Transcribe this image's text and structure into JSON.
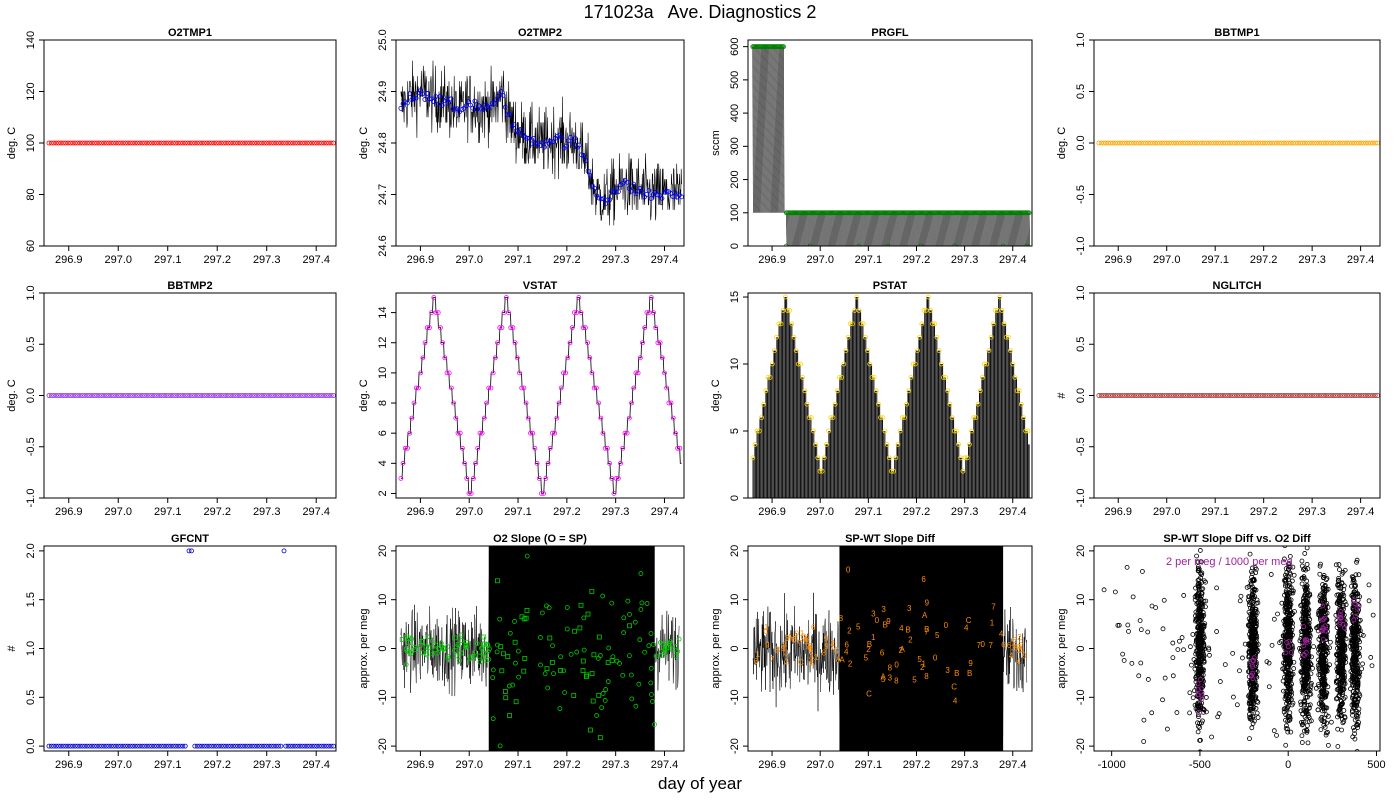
{
  "figure": {
    "title": "171023a   Ave. Diagnostics 2",
    "xlabel": "day of year"
  },
  "chart_data": [
    {
      "type": "scatter",
      "title": "O2TMP1",
      "xlabel": "",
      "ylabel": "deg. C",
      "xlim": [
        296.85,
        297.44
      ],
      "ylim": [
        60,
        140
      ],
      "x_ticks": [
        296.9,
        297.0,
        297.1,
        297.2,
        297.3,
        297.4
      ],
      "x_tick_labels": [
        "296.9",
        "297.0",
        "297.1",
        "297.2",
        "297.3",
        "297.4"
      ],
      "y_ticks": [
        60,
        80,
        100,
        120,
        140
      ],
      "y_tick_labels": [
        "60",
        "80",
        "100",
        "120",
        "140"
      ],
      "color": "#ff0000",
      "series": [
        {
          "x_start": 296.86,
          "x_end": 297.435,
          "n": 120,
          "value": 100
        }
      ]
    },
    {
      "type": "line",
      "title": "O2TMP2",
      "xlabel": "",
      "ylabel": "deg. C",
      "xlim": [
        296.85,
        297.44
      ],
      "ylim": [
        24.6,
        25.0
      ],
      "x_ticks": [
        296.9,
        297.0,
        297.1,
        297.2,
        297.3,
        297.4
      ],
      "x_tick_labels": [
        "296.9",
        "297.0",
        "297.1",
        "297.2",
        "297.3",
        "297.4"
      ],
      "y_ticks": [
        24.6,
        24.7,
        24.8,
        24.9,
        25.0
      ],
      "y_tick_labels": [
        "24.6",
        "24.7",
        "24.8",
        "24.9",
        "25.0"
      ],
      "color": "#0000ff",
      "series": [
        {
          "x": [
            296.86,
            296.88,
            296.9,
            296.92,
            296.95,
            296.98,
            297.0,
            297.02,
            297.05,
            297.07,
            297.08,
            297.1,
            297.12,
            297.15,
            297.18,
            297.2,
            297.22,
            297.24,
            297.26,
            297.28,
            297.3,
            297.32,
            297.34,
            297.36,
            297.38,
            297.4,
            297.42,
            297.435
          ],
          "y": [
            24.87,
            24.89,
            24.9,
            24.89,
            24.88,
            24.86,
            24.88,
            24.87,
            24.87,
            24.9,
            24.85,
            24.82,
            24.81,
            24.8,
            24.81,
            24.8,
            24.8,
            24.76,
            24.7,
            24.69,
            24.71,
            24.72,
            24.71,
            24.7,
            24.7,
            24.7,
            24.7,
            24.7
          ]
        }
      ]
    },
    {
      "type": "line",
      "title": "PRGFL",
      "xlabel": "",
      "ylabel": "sccm",
      "xlim": [
        296.85,
        297.44
      ],
      "ylim": [
        0,
        620
      ],
      "x_ticks": [
        296.9,
        297.0,
        297.1,
        297.2,
        297.3,
        297.4
      ],
      "x_tick_labels": [
        "296.9",
        "297.0",
        "297.1",
        "297.2",
        "297.3",
        "297.4"
      ],
      "y_ticks": [
        0,
        100,
        200,
        300,
        400,
        500,
        600
      ],
      "y_tick_labels": [
        "0",
        "100",
        "200",
        "300",
        "400",
        "500",
        "600"
      ],
      "color": "#008000",
      "series": [
        {
          "segments": [
            {
              "x_start": 296.86,
              "x_end": 296.925,
              "value": 600
            },
            {
              "x_start": 296.93,
              "x_end": 297.435,
              "value": 100
            }
          ],
          "zero_points": [
            296.93,
            296.98,
            297.08,
            297.14,
            297.21,
            297.28,
            297.38,
            297.43
          ]
        }
      ]
    },
    {
      "type": "scatter",
      "title": "BBTMP1",
      "xlabel": "",
      "ylabel": "deg. C",
      "xlim": [
        296.85,
        297.44
      ],
      "ylim": [
        -1,
        1
      ],
      "x_ticks": [
        296.9,
        297.0,
        297.1,
        297.2,
        297.3,
        297.4
      ],
      "x_tick_labels": [
        "296.9",
        "297.0",
        "297.1",
        "297.2",
        "297.3",
        "297.4"
      ],
      "y_ticks": [
        -1.0,
        -0.5,
        0.0,
        0.5,
        1.0
      ],
      "y_tick_labels": [
        "-1.0",
        "-0.5",
        "0.0",
        "0.5",
        "1.0"
      ],
      "color": "#ffa500",
      "series": [
        {
          "x_start": 296.86,
          "x_end": 297.435,
          "n": 120,
          "value": 0
        }
      ]
    },
    {
      "type": "scatter",
      "title": "BBTMP2",
      "xlabel": "",
      "ylabel": "deg. C",
      "xlim": [
        296.85,
        297.44
      ],
      "ylim": [
        -1,
        1
      ],
      "x_ticks": [
        296.9,
        297.0,
        297.1,
        297.2,
        297.3,
        297.4
      ],
      "x_tick_labels": [
        "296.9",
        "297.0",
        "297.1",
        "297.2",
        "297.3",
        "297.4"
      ],
      "y_ticks": [
        -1.0,
        -0.5,
        0.0,
        0.5,
        1.0
      ],
      "y_tick_labels": [
        "-1.0",
        "-0.5",
        "0.0",
        "0.5",
        "1.0"
      ],
      "color": "#8a2be2",
      "series": [
        {
          "x_start": 296.86,
          "x_end": 297.435,
          "n": 120,
          "value": 0
        }
      ]
    },
    {
      "type": "line",
      "title": "VSTAT",
      "xlabel": "",
      "ylabel": "deg. C",
      "xlim": [
        296.85,
        297.44
      ],
      "ylim": [
        1.7,
        15.3
      ],
      "x_ticks": [
        296.9,
        297.0,
        297.1,
        297.2,
        297.3,
        297.4
      ],
      "x_tick_labels": [
        "296.9",
        "297.0",
        "297.1",
        "297.2",
        "297.3",
        "297.4"
      ],
      "y_ticks": [
        2,
        4,
        6,
        8,
        10,
        12,
        14
      ],
      "y_tick_labels": [
        "2",
        "4",
        "6",
        "8",
        "10",
        "12",
        "14"
      ],
      "color": "#ff00ff",
      "series": [
        {
          "x_start": 296.86,
          "x_end": 297.435,
          "min": 2,
          "max": 15,
          "period": 0.148,
          "peaks": [
            296.928,
            297.076,
            297.224,
            297.372
          ]
        }
      ]
    },
    {
      "type": "bar",
      "title": "PSTAT",
      "xlabel": "",
      "ylabel": "deg. C",
      "xlim": [
        296.85,
        297.44
      ],
      "ylim": [
        0,
        15.3
      ],
      "x_ticks": [
        296.9,
        297.0,
        297.1,
        297.2,
        297.3,
        297.4
      ],
      "x_tick_labels": [
        "296.9",
        "297.0",
        "297.1",
        "297.2",
        "297.3",
        "297.4"
      ],
      "y_ticks": [
        0,
        5,
        10,
        15
      ],
      "y_tick_labels": [
        "0",
        "5",
        "10",
        "15"
      ],
      "color": "#ffd700",
      "series": [
        {
          "x_start": 296.86,
          "x_end": 297.435,
          "min": 2,
          "max": 15,
          "period": 0.148,
          "peaks": [
            296.928,
            297.076,
            297.224,
            297.372
          ]
        }
      ]
    },
    {
      "type": "scatter",
      "title": "NGLITCH",
      "xlabel": "",
      "ylabel": "#",
      "xlim": [
        296.85,
        297.44
      ],
      "ylim": [
        -1,
        1
      ],
      "x_ticks": [
        296.9,
        297.0,
        297.1,
        297.2,
        297.3,
        297.4
      ],
      "x_tick_labels": [
        "296.9",
        "297.0",
        "297.1",
        "297.2",
        "297.3",
        "297.4"
      ],
      "y_ticks": [
        -1.0,
        -0.5,
        0.0,
        0.5,
        1.0
      ],
      "y_tick_labels": [
        "-1.0",
        "-0.5",
        "0.0",
        "0.5",
        "1.0"
      ],
      "color": "#a52a2a",
      "series": [
        {
          "x_start": 296.86,
          "x_end": 297.435,
          "n": 120,
          "value": 0
        }
      ]
    },
    {
      "type": "scatter",
      "title": "GFCNT",
      "xlabel": "",
      "ylabel": "#",
      "xlim": [
        296.85,
        297.44
      ],
      "ylim": [
        -0.05,
        2.05
      ],
      "x_ticks": [
        296.9,
        297.0,
        297.1,
        297.2,
        297.3,
        297.4
      ],
      "x_tick_labels": [
        "296.9",
        "297.0",
        "297.1",
        "297.2",
        "297.3",
        "297.4"
      ],
      "y_ticks": [
        0.0,
        0.5,
        1.0,
        1.5,
        2.0
      ],
      "y_tick_labels": [
        "0.0",
        "0.5",
        "1.0",
        "1.5",
        "2.0"
      ],
      "color": "#0000cd",
      "series": [
        {
          "x_start": 296.86,
          "x_end": 297.435,
          "n": 120,
          "value": 0,
          "high_points": [
            {
              "x": 297.143,
              "y": 2
            },
            {
              "x": 297.148,
              "y": 2
            },
            {
              "x": 297.335,
              "y": 2
            }
          ],
          "gaps": [
            297.143,
            297.148,
            297.335
          ]
        }
      ]
    },
    {
      "type": "scatter",
      "title": "O2 Slope (O = SP)",
      "xlabel": "",
      "ylabel": "approx. per meg",
      "xlim": [
        296.85,
        297.44
      ],
      "ylim": [
        -21,
        21
      ],
      "x_ticks": [
        296.9,
        297.0,
        297.1,
        297.2,
        297.3,
        297.4
      ],
      "x_tick_labels": [
        "296.9",
        "297.0",
        "297.1",
        "297.2",
        "297.3",
        "297.4"
      ],
      "y_ticks": [
        -20,
        -10,
        0,
        10,
        20
      ],
      "y_tick_labels": [
        "-20",
        "-10",
        "0",
        "10",
        "20"
      ],
      "color": "#00cc00",
      "series": [
        {
          "name": "O",
          "noise_band": [
            -8,
            8
          ],
          "dense_region": [
            297.04,
            297.38
          ],
          "marker": "circle"
        },
        {
          "name": "SP",
          "marker": "square"
        }
      ]
    },
    {
      "type": "scatter",
      "title": "SP-WT Slope Diff",
      "xlabel": "",
      "ylabel": "approx. per meg",
      "xlim": [
        296.85,
        297.44
      ],
      "ylim": [
        -21,
        21
      ],
      "x_ticks": [
        296.9,
        297.0,
        297.1,
        297.2,
        297.3,
        297.4
      ],
      "x_tick_labels": [
        "296.9",
        "297.0",
        "297.1",
        "297.2",
        "297.3",
        "297.4"
      ],
      "y_ticks": [
        -20,
        -10,
        0,
        10,
        20
      ],
      "y_tick_labels": [
        "-20",
        "-10",
        "0",
        "10",
        "20"
      ],
      "color": "#ff8c00",
      "series": [
        {
          "noise_band": [
            -10,
            8
          ],
          "dense_region": [
            297.04,
            297.38
          ],
          "labels": [
            "1",
            "2",
            "3",
            "4",
            "5",
            "6",
            "7",
            "8",
            "9",
            "0",
            "A",
            "B",
            "C"
          ]
        }
      ]
    },
    {
      "type": "scatter",
      "title": "SP-WT Slope Diff vs. O2 Diff",
      "xlabel": "",
      "ylabel": "approx. per meg",
      "xlim": [
        -1100,
        520
      ],
      "ylim": [
        -21,
        21
      ],
      "x_ticks": [
        -1000,
        -500,
        0,
        500
      ],
      "x_tick_labels": [
        "-1000",
        "-500",
        "0",
        "500"
      ],
      "y_ticks": [
        -20,
        -10,
        0,
        10,
        20
      ],
      "y_tick_labels": [
        "-20",
        "-10",
        "0",
        "10",
        "20"
      ],
      "color": "#000000",
      "annotation": "2 per meg / 1000 per meg",
      "annotation_color": "#a020a0",
      "series": [
        {
          "clusters": [
            -500,
            -200,
            0,
            100,
            200,
            300,
            380
          ],
          "fit_color": "#a020a0"
        }
      ]
    }
  ]
}
